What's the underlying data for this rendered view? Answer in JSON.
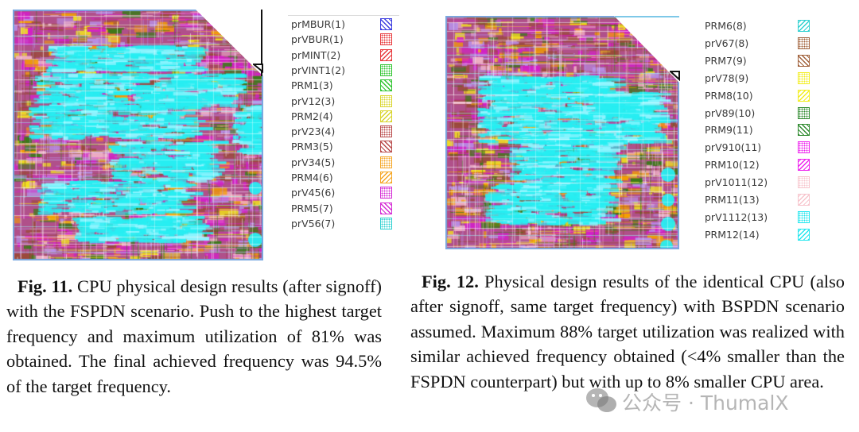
{
  "figures": [
    {
      "id": "fig11",
      "image_alt": "CPU layout with FSPDN routing layers",
      "legend": [
        {
          "label": "prMBUR(1)",
          "color": "#3a3adf",
          "pattern": "hatch-back"
        },
        {
          "label": "prVBUR(1)",
          "color": "#e8383b",
          "pattern": "dots"
        },
        {
          "label": "prMINT(2)",
          "color": "#e8383b",
          "pattern": "hatch-fwd"
        },
        {
          "label": "prVINT1(2)",
          "color": "#2fc42f",
          "pattern": "dots"
        },
        {
          "label": "PRM1(3)",
          "color": "#2fc42f",
          "pattern": "hatch-back"
        },
        {
          "label": "prV12(3)",
          "color": "#d8d42a",
          "pattern": "dots"
        },
        {
          "label": "PRM2(4)",
          "color": "#d8d42a",
          "pattern": "hatch-fwd"
        },
        {
          "label": "prV23(4)",
          "color": "#b84a4a",
          "pattern": "dots"
        },
        {
          "label": "PRM3(5)",
          "color": "#b84a4a",
          "pattern": "hatch-back"
        },
        {
          "label": "prV34(5)",
          "color": "#f5a623",
          "pattern": "dots"
        },
        {
          "label": "PRM4(6)",
          "color": "#f5a623",
          "pattern": "hatch-fwd"
        },
        {
          "label": "prV45(6)",
          "color": "#d42bd4",
          "pattern": "dots"
        },
        {
          "label": "PRM5(7)",
          "color": "#d42bd4",
          "pattern": "hatch-back"
        },
        {
          "label": "prV56(7)",
          "color": "#2ed0d0",
          "pattern": "dots"
        }
      ],
      "caption": {
        "label": "Fig. 11.",
        "text": " CPU physical design results (after signoff) with the FSPDN scenario. Push to the highest target frequency and maximum utilization of 81% was obtained. The final achieved frequency was 94.5% of the target frequency."
      }
    },
    {
      "id": "fig12",
      "image_alt": "CPU layout with BSPDN routing layers",
      "legend": [
        {
          "label": "PRM6(8)",
          "color": "#2ed0d0",
          "pattern": "hatch-fwd"
        },
        {
          "label": "prV67(8)",
          "color": "#a0603a",
          "pattern": "dots"
        },
        {
          "label": "PRM7(9)",
          "color": "#a0603a",
          "pattern": "hatch-back"
        },
        {
          "label": "prV78(9)",
          "color": "#f2ee1e",
          "pattern": "dots"
        },
        {
          "label": "PRM8(10)",
          "color": "#f2ee1e",
          "pattern": "hatch-fwd"
        },
        {
          "label": "prV89(10)",
          "color": "#2e8a2e",
          "pattern": "dots"
        },
        {
          "label": "PRM9(11)",
          "color": "#2e8a2e",
          "pattern": "hatch-back"
        },
        {
          "label": "prV910(11)",
          "color": "#ee22ee",
          "pattern": "dots"
        },
        {
          "label": "PRM10(12)",
          "color": "#ee22ee",
          "pattern": "hatch-fwd"
        },
        {
          "label": "prV1011(12)",
          "color": "#f7c4cc",
          "pattern": "dots"
        },
        {
          "label": "PRM11(13)",
          "color": "#f7c4cc",
          "pattern": "hatch-fwd"
        },
        {
          "label": "prV1112(13)",
          "color": "#22e6ee",
          "pattern": "dots"
        },
        {
          "label": "PRM12(14)",
          "color": "#22e6ee",
          "pattern": "hatch-fwd"
        }
      ],
      "caption": {
        "label": "Fig. 12.",
        "text": " Physical design results of the identical CPU (also after signoff, same target frequency) with BSPDN scenario assumed. Maximum 88% target utilization was realized with similar achieved frequency obtained (<4% smaller than the FSPDN counterpart) but with up to 8% smaller CPU area."
      }
    }
  ],
  "watermark": {
    "icon": "wechat-icon",
    "text": "公众号 · ThumalX"
  },
  "palette": {
    "cyan": "#27eef2",
    "magenta": "#d41fc8",
    "pink": "#efb0c6",
    "orange": "#f5a000",
    "brown": "#9a4a3a",
    "green": "#3a7a18",
    "yellow": "#f0e020",
    "blue": "#2a3ad8",
    "lavender": "#b890e8"
  }
}
